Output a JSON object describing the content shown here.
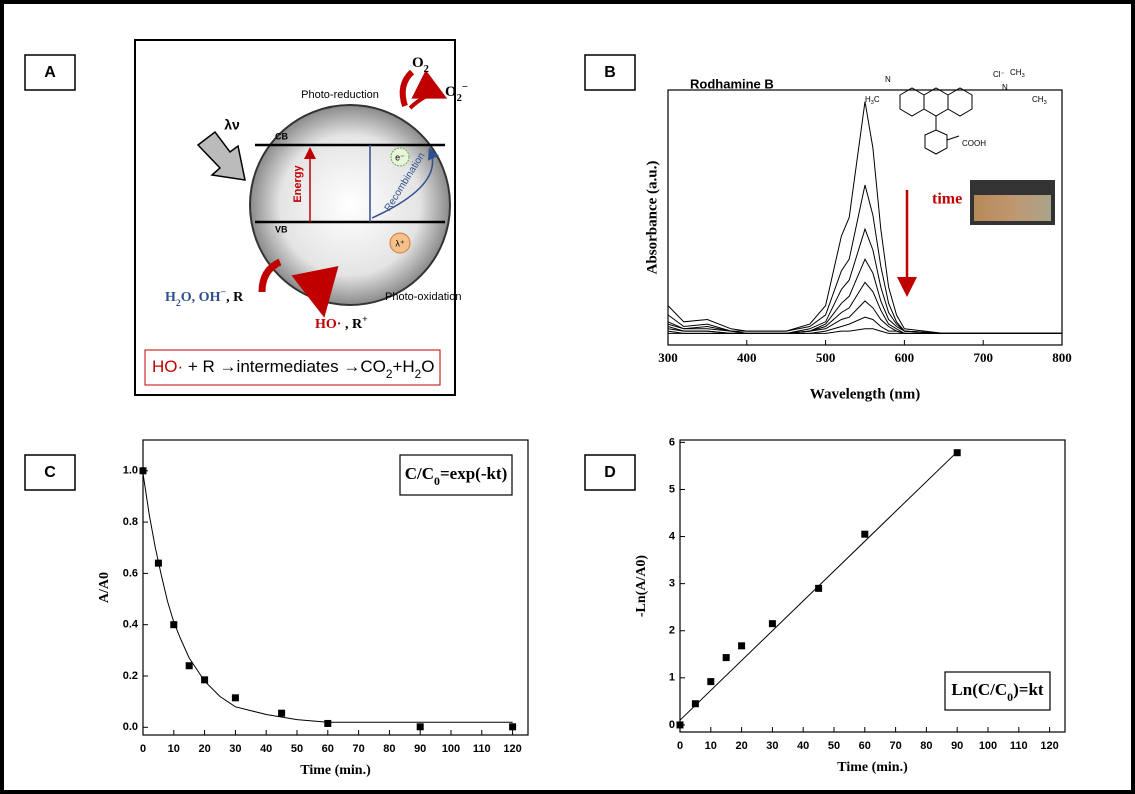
{
  "diagram": {
    "label": "A",
    "photo_reduction": "Photo-reduction",
    "o2": [
      "O",
      "2"
    ],
    "o2_radical": [
      "O",
      "2",
      "−"
    ],
    "light": "λν",
    "cb": "CB",
    "vb": "VB",
    "electron": "e⁻",
    "hole": "λ⁺",
    "energy": "Energy",
    "recombination": "Recombination",
    "reactants": [
      "H",
      "2",
      "O, OH",
      "−",
      ", R"
    ],
    "products": [
      "HO·",
      " , R",
      "+"
    ],
    "photo_oxidation": "Photo-oxidation",
    "reaction": [
      "HO·",
      " + R →intermediates →CO",
      "2",
      "+H",
      "2",
      "O"
    ]
  },
  "molecule": {
    "h3c": [
      "H",
      "3",
      "C"
    ],
    "ch3a": [
      "CH",
      "3"
    ],
    "ch3b": [
      "CH",
      "3"
    ],
    "cl": "Cl⁻",
    "cooh": "COOH",
    "n1": "N",
    "n2": "N"
  },
  "chart_data": [
    {
      "type": "line",
      "label": "B",
      "title": "Rodhamine B",
      "annotation": "time",
      "xlabel": "Wavelength (nm)",
      "ylabel": "Absorbance (a.u.)",
      "x": [
        300,
        320,
        350,
        380,
        400,
        450,
        480,
        500,
        520,
        530,
        550,
        560,
        570,
        580,
        590,
        600,
        650,
        700,
        800
      ],
      "xlim": [
        300,
        800
      ],
      "xticks": [
        300,
        400,
        500,
        600,
        700,
        800
      ],
      "ylim": [
        0,
        1.1
      ],
      "series": [
        {
          "color": "#000000",
          "values": [
            0.17,
            0.1,
            0.11,
            0.07,
            0.06,
            0.06,
            0.09,
            0.17,
            0.47,
            0.55,
            1.05,
            0.85,
            0.5,
            0.25,
            0.13,
            0.07,
            0.05,
            0.05,
            0.05
          ]
        },
        {
          "color": "#000000",
          "values": [
            0.13,
            0.08,
            0.09,
            0.06,
            0.06,
            0.06,
            0.08,
            0.13,
            0.32,
            0.37,
            0.69,
            0.56,
            0.34,
            0.18,
            0.1,
            0.06,
            0.05,
            0.05,
            0.05
          ]
        },
        {
          "color": "#000000",
          "values": [
            0.1,
            0.07,
            0.08,
            0.06,
            0.05,
            0.05,
            0.07,
            0.1,
            0.24,
            0.28,
            0.5,
            0.41,
            0.25,
            0.14,
            0.09,
            0.06,
            0.05,
            0.05,
            0.05
          ]
        },
        {
          "color": "#000000",
          "values": [
            0.09,
            0.07,
            0.07,
            0.06,
            0.05,
            0.05,
            0.06,
            0.09,
            0.18,
            0.21,
            0.37,
            0.31,
            0.19,
            0.11,
            0.08,
            0.06,
            0.05,
            0.05,
            0.05
          ]
        },
        {
          "color": "#000000",
          "values": [
            0.08,
            0.06,
            0.06,
            0.05,
            0.05,
            0.05,
            0.06,
            0.08,
            0.14,
            0.16,
            0.27,
            0.23,
            0.15,
            0.09,
            0.07,
            0.05,
            0.05,
            0.05,
            0.05
          ]
        },
        {
          "color": "#000000",
          "values": [
            0.07,
            0.06,
            0.06,
            0.05,
            0.05,
            0.05,
            0.06,
            0.07,
            0.11,
            0.12,
            0.19,
            0.16,
            0.11,
            0.08,
            0.06,
            0.05,
            0.05,
            0.05,
            0.05
          ]
        },
        {
          "color": "#000000",
          "values": [
            0.06,
            0.05,
            0.05,
            0.05,
            0.05,
            0.05,
            0.05,
            0.06,
            0.08,
            0.09,
            0.12,
            0.11,
            0.08,
            0.06,
            0.06,
            0.05,
            0.05,
            0.05,
            0.05
          ]
        },
        {
          "color": "#000000",
          "values": [
            0.05,
            0.05,
            0.05,
            0.05,
            0.05,
            0.05,
            0.05,
            0.05,
            0.06,
            0.06,
            0.07,
            0.07,
            0.06,
            0.05,
            0.05,
            0.05,
            0.05,
            0.05,
            0.05
          ]
        }
      ]
    },
    {
      "type": "scatter",
      "label": "C",
      "annotation": [
        "C/C",
        "0",
        "=exp(-kt)"
      ],
      "xlabel": "Time (min.)",
      "ylabel": "A/A0",
      "x": [
        0,
        5,
        10,
        15,
        20,
        30,
        45,
        60,
        90,
        120
      ],
      "series": [
        {
          "color": "#000000",
          "values": [
            1.0,
            0.64,
            0.4,
            0.24,
            0.185,
            0.115,
            0.055,
            0.015,
            0.002,
            0.002
          ]
        }
      ],
      "fit": {
        "x": [
          0,
          2,
          4,
          6,
          8,
          10,
          12,
          15,
          20,
          25,
          30,
          40,
          50,
          60,
          80,
          100,
          120
        ],
        "values": [
          0.99,
          0.83,
          0.7,
          0.59,
          0.49,
          0.41,
          0.35,
          0.27,
          0.18,
          0.12,
          0.08,
          0.05,
          0.03,
          0.02,
          0.02,
          0.02,
          0.02
        ]
      },
      "xlim": [
        0,
        125
      ],
      "xticks": [
        0,
        10,
        20,
        30,
        40,
        50,
        60,
        70,
        80,
        90,
        100,
        110,
        120
      ],
      "ylim": [
        -0.03,
        1.12
      ],
      "yticks": [
        {
          "value": 0,
          "label": "0.0"
        },
        0.2,
        0.4,
        0.6,
        0.8,
        {
          "value": 1,
          "label": "1.0"
        }
      ]
    },
    {
      "type": "scatter",
      "label": "D",
      "annotation": [
        "Ln(C/C",
        "0",
        ")=kt"
      ],
      "xlabel": "Time (min.)",
      "ylabel": "-Ln(A/A0)",
      "x": [
        0,
        5,
        10,
        15,
        20,
        30,
        45,
        60,
        90
      ],
      "series": [
        {
          "color": "#000000",
          "values": [
            0.0,
            0.45,
            0.92,
            1.43,
            1.68,
            2.15,
            2.9,
            4.05,
            5.78
          ]
        }
      ],
      "fit": {
        "x": [
          0,
          90
        ],
        "values": [
          0.1,
          5.8
        ]
      },
      "xlim": [
        0,
        125
      ],
      "xticks": [
        0,
        10,
        20,
        30,
        40,
        50,
        60,
        70,
        80,
        90,
        100,
        110,
        120
      ],
      "ylim": [
        -0.15,
        6.05
      ],
      "yticks": [
        0,
        1,
        2,
        3,
        4,
        5,
        6
      ]
    }
  ]
}
